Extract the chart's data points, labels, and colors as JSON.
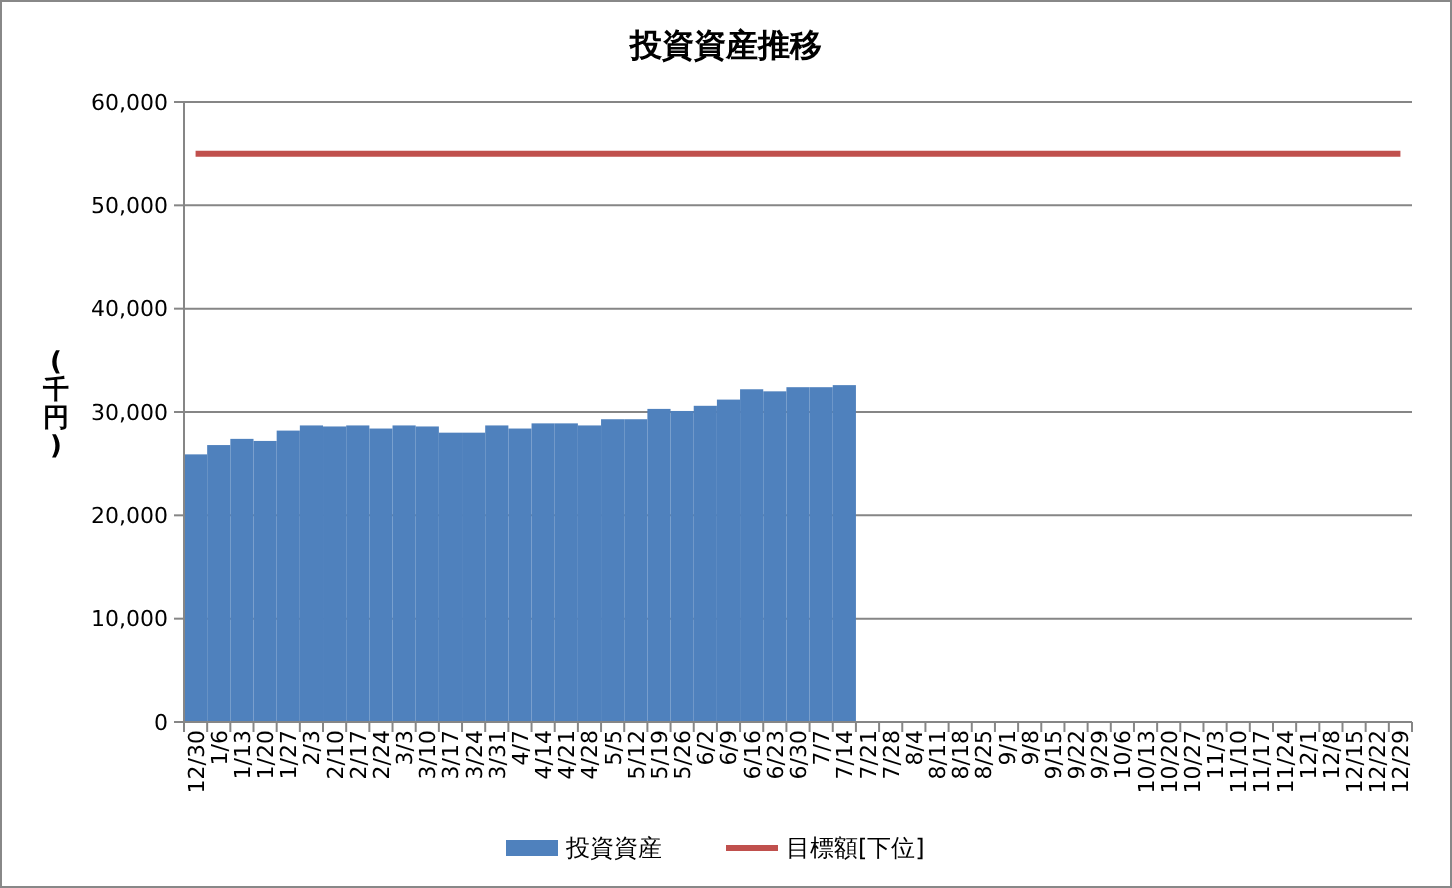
{
  "chart_data": {
    "type": "bar",
    "title": "投資資産推移",
    "ylabel": "(千円)",
    "categories": [
      "12/30",
      "1/6",
      "1/13",
      "1/20",
      "1/27",
      "2/3",
      "2/10",
      "2/17",
      "2/24",
      "3/3",
      "3/10",
      "3/17",
      "3/24",
      "3/31",
      "4/7",
      "4/14",
      "4/21",
      "4/28",
      "5/5",
      "5/12",
      "5/19",
      "5/26",
      "6/2",
      "6/9",
      "6/16",
      "6/23",
      "6/30",
      "7/7",
      "7/14",
      "7/21",
      "7/28",
      "8/4",
      "8/11",
      "8/18",
      "8/25",
      "9/1",
      "9/8",
      "9/15",
      "9/22",
      "9/29",
      "10/6",
      "10/13",
      "10/20",
      "10/27",
      "11/3",
      "11/10",
      "11/17",
      "11/24",
      "12/1",
      "12/8",
      "12/15",
      "12/22",
      "12/29"
    ],
    "series": [
      {
        "name": "投資資産",
        "color": "#4f81bd",
        "values": [
          25900,
          26800,
          27400,
          27200,
          28200,
          28700,
          28600,
          28700,
          28400,
          28700,
          28600,
          28000,
          28000,
          28700,
          28400,
          28900,
          28900,
          28700,
          29300,
          29300,
          30300,
          30100,
          30600,
          31200,
          32200,
          32000,
          32400,
          32400,
          32600,
          null,
          null,
          null,
          null,
          null,
          null,
          null,
          null,
          null,
          null,
          null,
          null,
          null,
          null,
          null,
          null,
          null,
          null,
          null,
          null,
          null,
          null,
          null,
          null
        ]
      },
      {
        "name": "目標額[下位]",
        "type": "line",
        "color": "#c0504d",
        "values": [
          55000,
          55000,
          55000,
          55000,
          55000,
          55000,
          55000,
          55000,
          55000,
          55000,
          55000,
          55000,
          55000,
          55000,
          55000,
          55000,
          55000,
          55000,
          55000,
          55000,
          55000,
          55000,
          55000,
          55000,
          55000,
          55000,
          55000,
          55000,
          55000,
          55000,
          55000,
          55000,
          55000,
          55000,
          55000,
          55000,
          55000,
          55000,
          55000,
          55000,
          55000,
          55000,
          55000,
          55000,
          55000,
          55000,
          55000,
          55000,
          55000,
          55000,
          55000,
          55000,
          55000
        ]
      }
    ],
    "ylim": [
      0,
      60000
    ],
    "yticks": [
      {
        "value": 0,
        "label": "0"
      },
      {
        "value": 10000,
        "label": "10,000"
      },
      {
        "value": 20000,
        "label": "20,000"
      },
      {
        "value": 30000,
        "label": "30,000"
      },
      {
        "value": 40000,
        "label": "40,000"
      },
      {
        "value": 50000,
        "label": "50,000"
      },
      {
        "value": 60000,
        "label": "60,000"
      }
    ],
    "grid": "y",
    "legend": "bottom",
    "marker": "none"
  }
}
